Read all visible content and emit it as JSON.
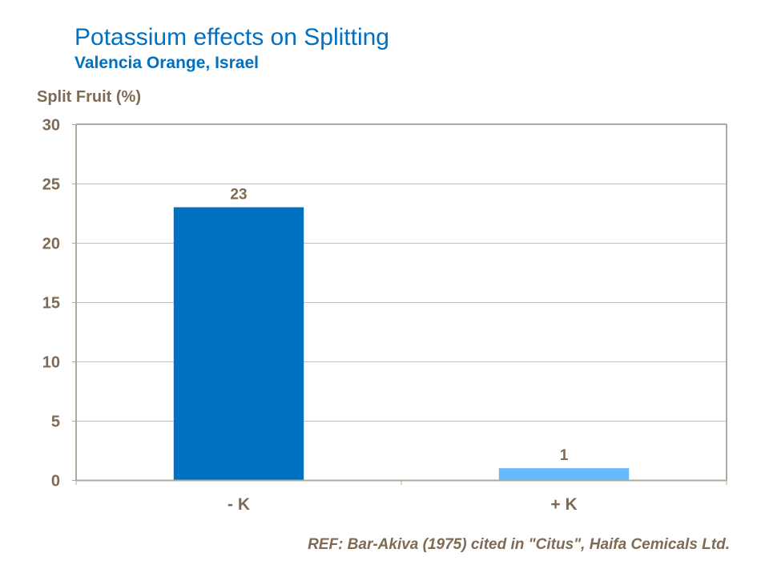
{
  "chart_data": {
    "type": "bar",
    "title": "Potassium effects on Splitting",
    "subtitle": "Valencia Orange, Israel",
    "ylabel": "Split Fruit (%)",
    "xlabel": "",
    "categories": [
      "- K",
      "+ K"
    ],
    "values": [
      23,
      1
    ],
    "data_labels": [
      "23",
      "1"
    ],
    "colors": [
      "#0070C0",
      "#66BBFF"
    ],
    "ylim": [
      0,
      30
    ],
    "yticks": [
      0,
      5,
      10,
      15,
      20,
      25,
      30
    ],
    "grid": true,
    "legend": "none"
  },
  "footnote": "REF: Bar-Akiva (1975) cited in \"Citus\", Haifa Cemicals Ltd."
}
